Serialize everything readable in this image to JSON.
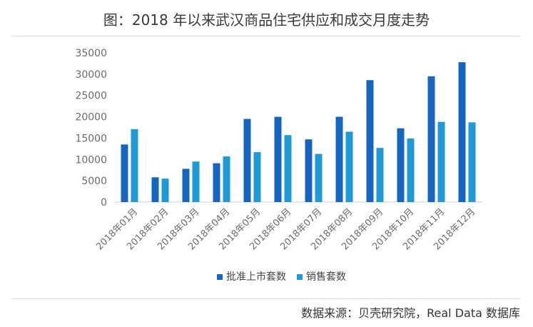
{
  "title": "图：2018 年以来武汉商品住宅供应和成交月度走势",
  "source": "数据来源：贝壳研究院，Real Data 数据库",
  "chart_data": {
    "type": "bar",
    "title": "图：2018 年以来武汉商品住宅供应和成交月度走势",
    "xlabel": "",
    "ylabel": "",
    "ylim": [
      0,
      35000
    ],
    "yticks": [
      0,
      5000,
      10000,
      15000,
      20000,
      25000,
      30000,
      35000
    ],
    "grid": false,
    "legend_position": "bottom",
    "categories": [
      "2018年01月",
      "2018年02月",
      "2018年03月",
      "2018年04月",
      "2018年05月",
      "2018年06月",
      "2018年07月",
      "2018年08月",
      "2018年09月",
      "2018年10月",
      "2018年11月",
      "2018年12月"
    ],
    "series": [
      {
        "name": "批准上市套数",
        "color": "#1565c0",
        "values": [
          13500,
          5800,
          7800,
          9100,
          19500,
          20000,
          14700,
          20000,
          28600,
          17300,
          29500,
          32800
        ]
      },
      {
        "name": "销售套数",
        "color": "#1e9ad6",
        "values": [
          17100,
          5500,
          9500,
          10700,
          11700,
          15700,
          11300,
          16500,
          12700,
          14900,
          18800,
          18700
        ]
      }
    ]
  }
}
